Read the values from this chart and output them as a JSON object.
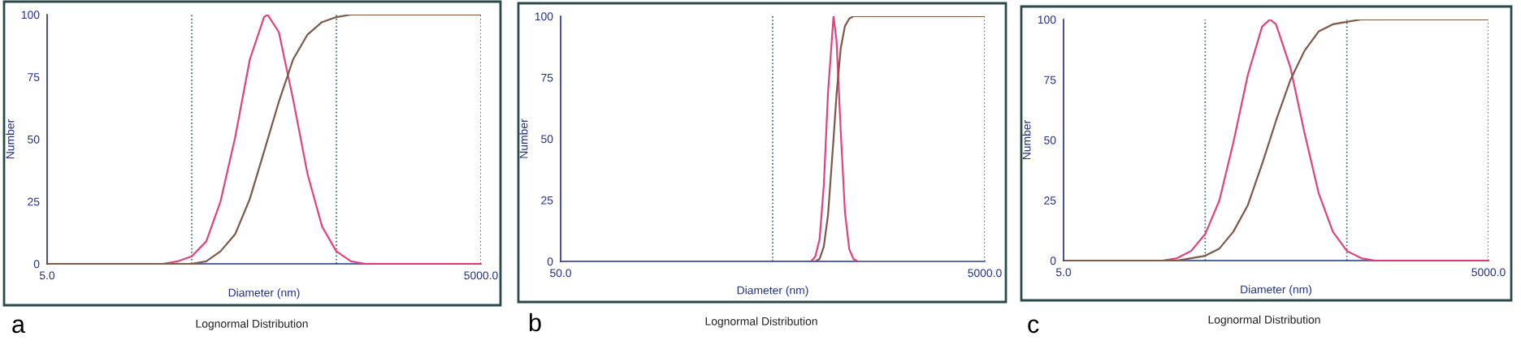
{
  "chart_data": [
    {
      "type": "line",
      "title": "Lognormal Distribution",
      "xlabel": "Diameter (nm)",
      "ylabel": "Number",
      "annotations": [
        "a"
      ],
      "log": "x",
      "legend": false,
      "xlim": [
        5,
        5000
      ],
      "xticks": [
        {
          "value": 5,
          "label": "5.0"
        },
        {
          "value": 5000,
          "label": "5000.0"
        }
      ],
      "ylim": [
        0,
        100
      ],
      "yticks": [
        0,
        25,
        50,
        75,
        100
      ],
      "ref_lines": [
        {
          "axis": "x",
          "value": 50,
          "color": "#2a6a6a",
          "line_style": "dotted"
        },
        {
          "axis": "x",
          "value": 500,
          "color": "#2a6a6a",
          "line_style": "dotted"
        },
        {
          "axis": "x",
          "value": 5000,
          "color": "#2a6a6a",
          "line_style": "dotted"
        }
      ],
      "series": [
        {
          "color": "#e4427d",
          "x": [
            5,
            31.6,
            39.8,
            50,
            63,
            79,
            100,
            126,
            158,
            167,
            200,
            251,
            316,
            398,
            500,
            631,
            794,
            5000
          ],
          "values": [
            0,
            0,
            1,
            3,
            9,
            25,
            51,
            82,
            99,
            100,
            93,
            66,
            36,
            15,
            5,
            1,
            0,
            0
          ]
        },
        {
          "color": "#7d5a48",
          "x": [
            5,
            31.6,
            39.8,
            50,
            63,
            79,
            100,
            126,
            158,
            200,
            251,
            316,
            398,
            500,
            631,
            794,
            5000
          ],
          "values": [
            0,
            0,
            0,
            0,
            1,
            5,
            12,
            26,
            45,
            65,
            82,
            92,
            97,
            99,
            100,
            100,
            100
          ]
        }
      ]
    },
    {
      "type": "line",
      "title": "Lognormal Distribution",
      "xlabel": "Diameter (nm)",
      "ylabel": "Number",
      "annotations": [
        "b"
      ],
      "log": "x",
      "legend": false,
      "xlim": [
        50,
        5000
      ],
      "xticks": [
        {
          "value": 50,
          "label": "50.0"
        },
        {
          "value": 5000,
          "label": "5000.0"
        }
      ],
      "ylim": [
        0,
        100
      ],
      "yticks": [
        0,
        25,
        50,
        75,
        100
      ],
      "ref_lines": [
        {
          "axis": "x",
          "value": 500,
          "color": "#2a6a6a",
          "line_style": "dotted"
        },
        {
          "axis": "x",
          "value": 5000,
          "color": "#2a6a6a",
          "line_style": "dotted"
        }
      ],
      "series": [
        {
          "color": "#e4427d",
          "x": [
            50,
            759,
            794,
            832,
            871,
            912,
            968,
            1000,
            1047,
            1096,
            1148,
            1202,
            1259,
            5000
          ],
          "values": [
            0,
            0,
            2,
            9,
            31,
            69,
            100,
            90,
            53,
            20,
            5,
            1,
            0,
            0
          ]
        },
        {
          "color": "#7d5a48",
          "x": [
            50,
            759,
            794,
            832,
            871,
            912,
            968,
            1000,
            1047,
            1096,
            1148,
            1202,
            1259,
            5000
          ],
          "values": [
            0,
            0,
            0,
            1,
            6,
            19,
            50,
            68,
            87,
            96,
            99,
            100,
            100,
            100
          ]
        }
      ]
    },
    {
      "type": "line",
      "title": "Lognormal Distribution",
      "xlabel": "Diameter (nm)",
      "ylabel": "Number",
      "annotations": [
        "c"
      ],
      "log": "x",
      "legend": false,
      "xlim": [
        5,
        5000
      ],
      "xticks": [
        {
          "value": 5,
          "label": "5.0"
        },
        {
          "value": 5000,
          "label": "5000.0"
        }
      ],
      "ylim": [
        0,
        100
      ],
      "yticks": [
        0,
        25,
        50,
        75,
        100
      ],
      "ref_lines": [
        {
          "axis": "x",
          "value": 50,
          "color": "#2a6a6a",
          "line_style": "dotted"
        },
        {
          "axis": "x",
          "value": 500,
          "color": "#2a6a6a",
          "line_style": "dotted"
        },
        {
          "axis": "x",
          "value": 5000,
          "color": "#2a6a6a",
          "line_style": "dotted"
        }
      ],
      "series": [
        {
          "color": "#e4427d",
          "x": [
            5,
            20,
            25,
            31.6,
            39.8,
            50,
            63,
            79,
            100,
            126,
            143,
            158,
            200,
            251,
            316,
            398,
            500,
            631,
            794,
            1000,
            5000
          ],
          "values": [
            0,
            0,
            0,
            1,
            4,
            11,
            25,
            49,
            77,
            97,
            100,
            98,
            80,
            53,
            28,
            12,
            4,
            1,
            0,
            0,
            0
          ]
        },
        {
          "color": "#7d5a48",
          "x": [
            5,
            25,
            31.6,
            39.8,
            50,
            63,
            79,
            100,
            126,
            143,
            158,
            200,
            251,
            316,
            398,
            500,
            631,
            794,
            5000
          ],
          "values": [
            0,
            0,
            0,
            1,
            2,
            5,
            12,
            23,
            40,
            50,
            58,
            75,
            87,
            95,
            98,
            99,
            100,
            100,
            100
          ]
        }
      ]
    }
  ]
}
